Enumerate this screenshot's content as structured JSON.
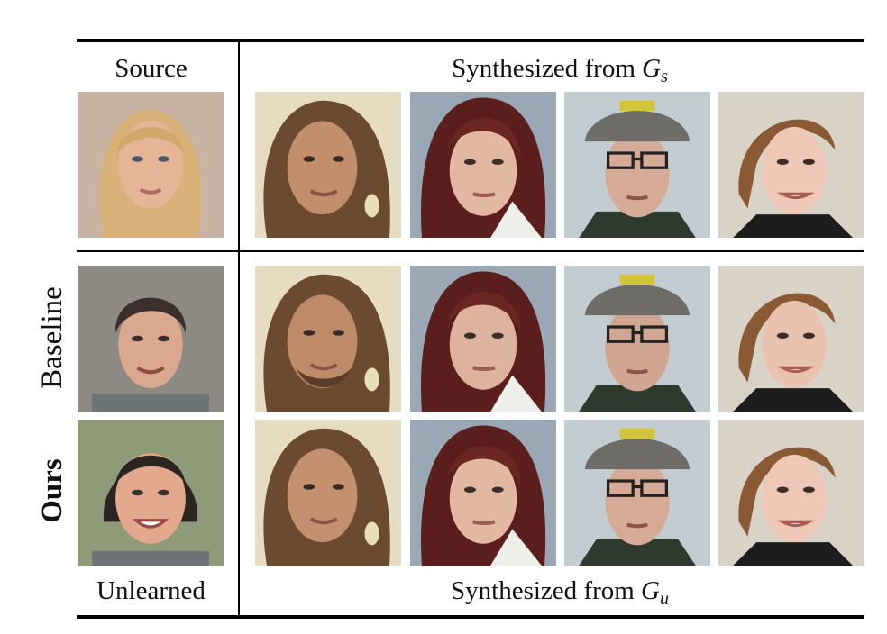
{
  "header": {
    "source_label": "Source",
    "synth_s_prefix": "Synthesized from ",
    "synth_s_symbol": "G",
    "synth_s_sub": "s"
  },
  "footer": {
    "unlearned_label": "Unlearned",
    "synth_u_prefix": "Synthesized from ",
    "synth_u_symbol": "G",
    "synth_u_sub": "u"
  },
  "rows": {
    "baseline_label": "Baseline",
    "ours_label": "Ours"
  },
  "colors": {
    "rule": "#000000",
    "source_hair": "#d9b27a",
    "source_bg": "#c9b4a3",
    "baseline_bg": "#8d8a83",
    "ours_bg": "#8e9a78",
    "face1_bg": "#e6dcc2",
    "face2_bg": "#9aa7b4",
    "face3_bg": "#c3ccd1",
    "face4_bg": "#d8d2c7"
  }
}
